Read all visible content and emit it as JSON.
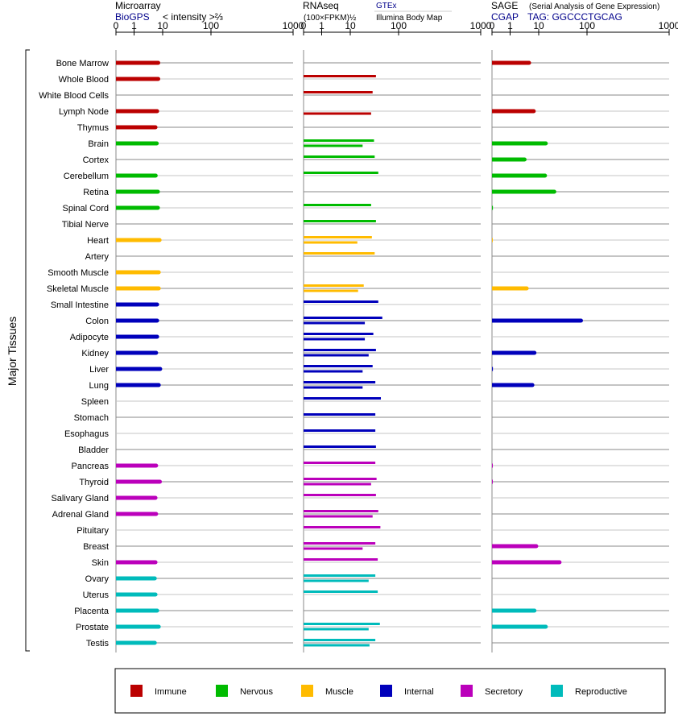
{
  "colors": {
    "Immune": "#bb0000",
    "Nervous": "#00bb00",
    "Muscle": "#ffbb00",
    "Internal": "#0000bb",
    "Secretory": "#bb00bb",
    "Reproductive": "#00bbbb",
    "link": "#00008b"
  },
  "y_axis_label": "Major Tissues",
  "panels": [
    {
      "title": "Microarray",
      "subtitle_link": "BioGPS",
      "subtitle_text": "< intensity >⅔",
      "extra_link": "",
      "extra_text": "",
      "ticks": [
        "0",
        "1",
        "10",
        "100",
        "1000"
      ]
    },
    {
      "title": "RNAseq",
      "subtitle_link": "",
      "subtitle_text": "(100×FPKM)½",
      "extra_link": "GTEx",
      "extra_text": "Illumina Body Map",
      "ticks": [
        "0",
        "1",
        "10",
        "100",
        "1000"
      ]
    },
    {
      "title": "SAGE",
      "title_note": "(Serial Analysis of Gene Expression)",
      "subtitle_link": "CGAP",
      "subtitle_text": "TAG: GGCCCTGCAG",
      "extra_link": "",
      "extra_text": "",
      "ticks": [
        "0",
        "1",
        "10",
        "100",
        "1000"
      ]
    }
  ],
  "legend": [
    {
      "label": "Immune",
      "color": "#bb0000"
    },
    {
      "label": "Nervous",
      "color": "#00bb00"
    },
    {
      "label": "Muscle",
      "color": "#ffbb00"
    },
    {
      "label": "Internal",
      "color": "#0000bb"
    },
    {
      "label": "Secretory",
      "color": "#bb00bb"
    },
    {
      "label": "Reproductive",
      "color": "#00bbbb"
    }
  ],
  "chart_data": {
    "type": "bar",
    "orientation": "horizontal",
    "x_scale": "log",
    "xlim": [
      0,
      1000
    ],
    "x_ticks": [
      0,
      1,
      10,
      100,
      1000
    ],
    "series_names": [
      "Microarray",
      "RNAseq GTEx",
      "RNAseq Illumina Body Map",
      "SAGE"
    ],
    "categories": [
      {
        "tissue": "Bone Marrow",
        "group": "Immune",
        "microarray": 7,
        "gtex": null,
        "ibm": null,
        "sage": 4.6
      },
      {
        "tissue": "Whole Blood",
        "group": "Immune",
        "microarray": 7,
        "gtex": 34,
        "ibm": null,
        "sage": null
      },
      {
        "tissue": "White Blood Cells",
        "group": "Immune",
        "microarray": null,
        "gtex": 29,
        "ibm": null,
        "sage": null
      },
      {
        "tissue": "Lymph Node",
        "group": "Immune",
        "microarray": 6.4,
        "gtex": null,
        "ibm": 27,
        "sage": 6.7
      },
      {
        "tissue": "Thymus",
        "group": "Immune",
        "microarray": 5.6,
        "gtex": null,
        "ibm": null,
        "sage": null
      },
      {
        "tissue": "Brain",
        "group": "Nervous",
        "microarray": 6.2,
        "gtex": 31,
        "ibm": 18,
        "sage": 14
      },
      {
        "tissue": "Cortex",
        "group": "Nervous",
        "microarray": null,
        "gtex": 32,
        "ibm": null,
        "sage": 3.2
      },
      {
        "tissue": "Cerebellum",
        "group": "Nervous",
        "microarray": 5.7,
        "gtex": 38,
        "ibm": null,
        "sage": 13.5
      },
      {
        "tissue": "Retina",
        "group": "Nervous",
        "microarray": 6.8,
        "gtex": null,
        "ibm": null,
        "sage": 21
      },
      {
        "tissue": "Spinal Cord",
        "group": "Nervous",
        "microarray": 6.8,
        "gtex": 27,
        "ibm": null,
        "sage": 0.05
      },
      {
        "tissue": "Tibial Nerve",
        "group": "Nervous",
        "microarray": null,
        "gtex": 34,
        "ibm": null,
        "sage": null
      },
      {
        "tissue": "Heart",
        "group": "Muscle",
        "microarray": 7.8,
        "gtex": 28,
        "ibm": 14,
        "sage": 0.02
      },
      {
        "tissue": "Artery",
        "group": "Muscle",
        "microarray": null,
        "gtex": 32,
        "ibm": null,
        "sage": null
      },
      {
        "tissue": "Smooth Muscle",
        "group": "Muscle",
        "microarray": 7.3,
        "gtex": null,
        "ibm": null,
        "sage": null
      },
      {
        "tissue": "Skeletal Muscle",
        "group": "Muscle",
        "microarray": 7.3,
        "gtex": 19,
        "ibm": 14.5,
        "sage": 3.8
      },
      {
        "tissue": "Small Intestine",
        "group": "Internal",
        "microarray": 6.4,
        "gtex": 38,
        "ibm": null,
        "sage": null
      },
      {
        "tissue": "Colon",
        "group": "Internal",
        "microarray": 6.4,
        "gtex": 46,
        "ibm": 20,
        "sage": 75
      },
      {
        "tissue": "Adipocyte",
        "group": "Internal",
        "microarray": 6.4,
        "gtex": 30,
        "ibm": 20,
        "sage": null
      },
      {
        "tissue": "Kidney",
        "group": "Internal",
        "microarray": 5.9,
        "gtex": 34,
        "ibm": 24,
        "sage": 7.1
      },
      {
        "tissue": "Liver",
        "group": "Internal",
        "microarray": 8.2,
        "gtex": 29,
        "ibm": 18,
        "sage": 0.05
      },
      {
        "tissue": "Lung",
        "group": "Internal",
        "microarray": 7.3,
        "gtex": 33,
        "ibm": 18,
        "sage": 6.0
      },
      {
        "tissue": "Spleen",
        "group": "Internal",
        "microarray": null,
        "gtex": 43,
        "ibm": null,
        "sage": null
      },
      {
        "tissue": "Stomach",
        "group": "Internal",
        "microarray": null,
        "gtex": 33,
        "ibm": null,
        "sage": null
      },
      {
        "tissue": "Esophagus",
        "group": "Internal",
        "microarray": null,
        "gtex": 33,
        "ibm": null,
        "sage": null
      },
      {
        "tissue": "Bladder",
        "group": "Internal",
        "microarray": null,
        "gtex": 34,
        "ibm": null,
        "sage": null
      },
      {
        "tissue": "Pancreas",
        "group": "Secretory",
        "microarray": 5.9,
        "gtex": 33,
        "ibm": null,
        "sage": 0.02
      },
      {
        "tissue": "Thyroid",
        "group": "Secretory",
        "microarray": 8.0,
        "gtex": 35,
        "ibm": 27,
        "sage": 0.02
      },
      {
        "tissue": "Salivary Gland",
        "group": "Secretory",
        "microarray": 5.6,
        "gtex": 34,
        "ibm": null,
        "sage": null
      },
      {
        "tissue": "Adrenal Gland",
        "group": "Secretory",
        "microarray": 5.9,
        "gtex": 38,
        "ibm": 29,
        "sage": null
      },
      {
        "tissue": "Pituitary",
        "group": "Secretory",
        "microarray": null,
        "gtex": 42,
        "ibm": null,
        "sage": null
      },
      {
        "tissue": "Breast",
        "group": "Secretory",
        "microarray": null,
        "gtex": 33,
        "ibm": 18,
        "sage": 8.2
      },
      {
        "tissue": "Skin",
        "group": "Secretory",
        "microarray": 5.6,
        "gtex": 37,
        "ibm": null,
        "sage": 27
      },
      {
        "tissue": "Ovary",
        "group": "Reproductive",
        "microarray": 5.3,
        "gtex": 33,
        "ibm": 24,
        "sage": null
      },
      {
        "tissue": "Uterus",
        "group": "Reproductive",
        "microarray": 5.6,
        "gtex": 37,
        "ibm": null,
        "sage": null
      },
      {
        "tissue": "Placenta",
        "group": "Reproductive",
        "microarray": 6.4,
        "gtex": null,
        "ibm": null,
        "sage": 7.1
      },
      {
        "tissue": "Prostate",
        "group": "Reproductive",
        "microarray": 7.3,
        "gtex": 41,
        "ibm": 24,
        "sage": 14
      },
      {
        "tissue": "Testis",
        "group": "Reproductive",
        "microarray": 5.3,
        "gtex": 33,
        "ibm": 25,
        "sage": null
      }
    ]
  }
}
